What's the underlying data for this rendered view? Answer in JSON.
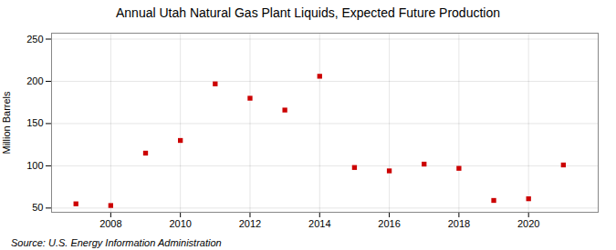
{
  "chart_data": {
    "type": "scatter",
    "title": "Annual Utah Natural Gas Plant Liquids, Expected Future Production",
    "ylabel": "Million Barrels",
    "annotations": [
      "Source: U.S. Energy Information Administration"
    ],
    "x": [
      2007,
      2008,
      2009,
      2010,
      2011,
      2012,
      2013,
      2014,
      2015,
      2016,
      2017,
      2018,
      2019,
      2020,
      2021
    ],
    "values": [
      55,
      53,
      115,
      130,
      197,
      180,
      166,
      206,
      98,
      94,
      102,
      97,
      59,
      61,
      101
    ],
    "color": "#cc0000",
    "marker": "square",
    "xlim": [
      2006.3,
      2022.0
    ],
    "xticks": [
      2008,
      2010,
      2012,
      2014,
      2016,
      2018,
      2020
    ],
    "ylim": [
      45,
      257
    ],
    "yticks": [
      50,
      100,
      150,
      200,
      250
    ],
    "grid": true
  }
}
